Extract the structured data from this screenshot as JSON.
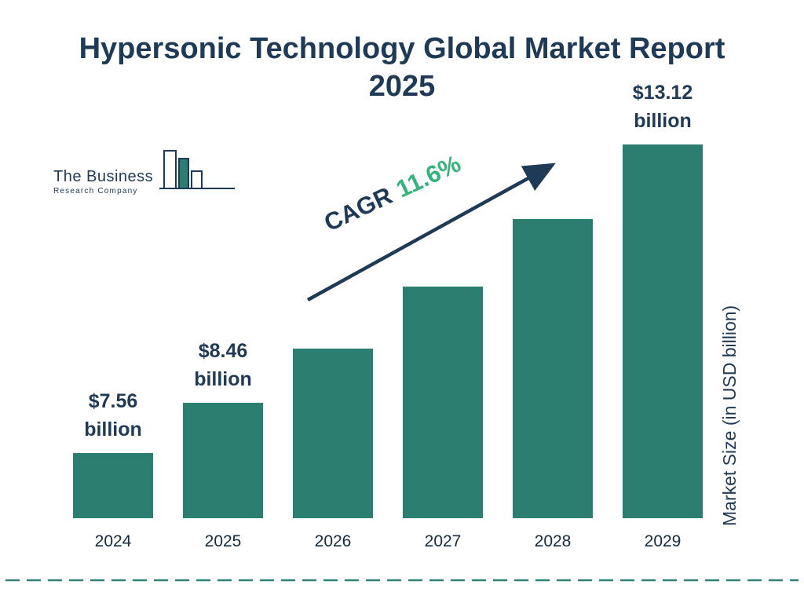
{
  "title": {
    "line1": "Hypersonic Technology Global Market Report",
    "line2": "2025"
  },
  "logo": {
    "name": "The Business",
    "subname": "Research Company"
  },
  "chart_data": {
    "type": "bar",
    "title": "Hypersonic Technology Global Market Report 2025",
    "categories": [
      "2024",
      "2025",
      "2026",
      "2027",
      "2028",
      "2029"
    ],
    "values": [
      7.56,
      8.46,
      9.44,
      10.54,
      11.76,
      13.12
    ],
    "annotations": [
      [
        "$7.56",
        "billion"
      ],
      [
        "$8.46",
        "billion"
      ],
      null,
      null,
      null,
      [
        "$13.12",
        "billion"
      ]
    ],
    "xlabel": "",
    "ylabel": "Market Size (in USD billion)",
    "ylim": [
      6.39,
      14.28
    ],
    "grid": false,
    "legend": "none",
    "cagr_label": "CAGR",
    "cagr_value": "11.6%",
    "bar_color": "#2a7f70",
    "accent_green": "#34b37c",
    "navy": "#1e3a56",
    "divider_color": "#2f8273"
  }
}
